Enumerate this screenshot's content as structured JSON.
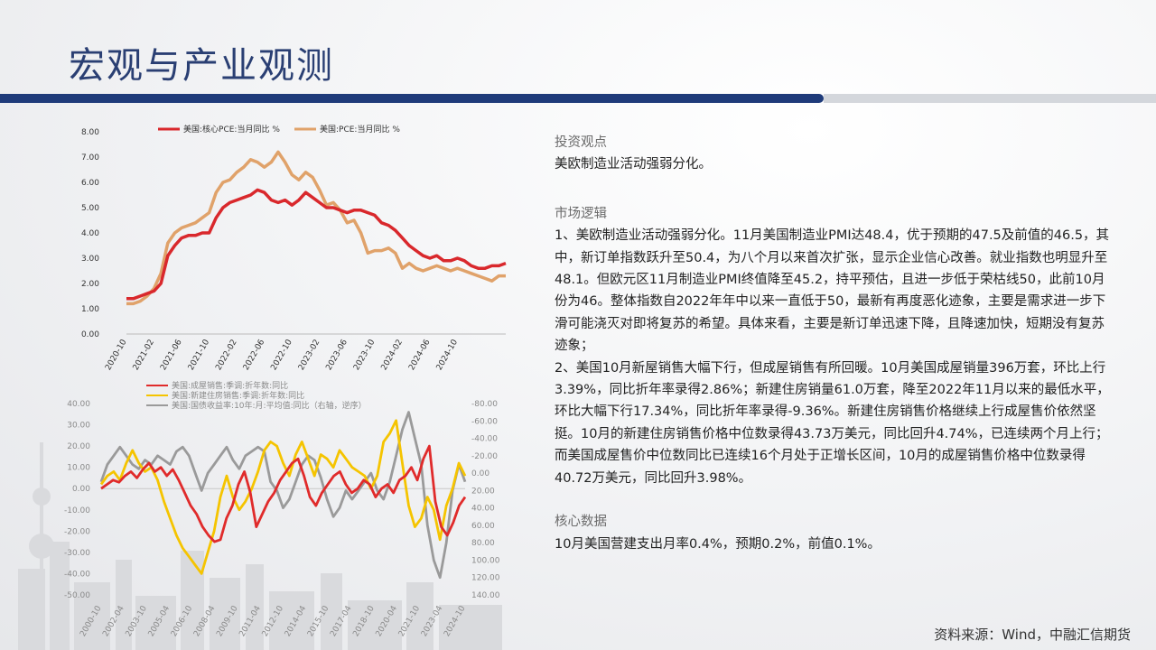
{
  "page": {
    "title": "宏观与产业观测",
    "source": "资料来源：Wind，中融汇信期货"
  },
  "chart_data": [
    {
      "type": "line",
      "title": "",
      "legend": [
        "美国:核心PCE:当月同比 %",
        "美国:PCE:当月同比 %"
      ],
      "ylim": [
        0,
        8
      ],
      "yticks": [
        "0.00",
        "1.00",
        "2.00",
        "3.00",
        "4.00",
        "5.00",
        "6.00",
        "7.00",
        "8.00"
      ],
      "xticks": [
        "2020-10",
        "2021-02",
        "2021-06",
        "2021-10",
        "2022-02",
        "2022-06",
        "2022-10",
        "2023-02",
        "2023-06",
        "2023-10",
        "2024-02",
        "2024-06",
        "2024-10"
      ],
      "x_start": "2020-10",
      "colors": [
        "#d9282c",
        "#e0a26a"
      ],
      "series": [
        {
          "name": "美国:核心PCE:当月同比 %",
          "values": [
            1.4,
            1.4,
            1.5,
            1.6,
            1.7,
            2.0,
            3.1,
            3.5,
            3.8,
            3.9,
            3.9,
            4.0,
            4.0,
            4.6,
            5.0,
            5.2,
            5.3,
            5.4,
            5.5,
            5.7,
            5.6,
            5.3,
            5.2,
            5.3,
            5.1,
            5.3,
            5.6,
            5.4,
            5.2,
            5.0,
            5.0,
            4.9,
            4.8,
            4.9,
            4.9,
            4.8,
            4.7,
            4.4,
            4.3,
            4.1,
            3.8,
            3.5,
            3.3,
            3.1,
            3.0,
            3.1,
            2.9,
            2.9,
            3.0,
            2.9,
            2.7,
            2.6,
            2.6,
            2.7,
            2.7,
            2.8
          ]
        },
        {
          "name": "美国:PCE:当月同比 %",
          "values": [
            1.2,
            1.2,
            1.3,
            1.5,
            1.8,
            2.4,
            3.6,
            4.0,
            4.2,
            4.3,
            4.4,
            4.6,
            4.8,
            5.6,
            6.0,
            6.1,
            6.4,
            6.6,
            6.9,
            6.8,
            6.6,
            6.8,
            7.2,
            6.8,
            6.3,
            6.1,
            6.4,
            6.2,
            5.7,
            5.1,
            5.2,
            4.9,
            4.4,
            4.5,
            4.0,
            3.2,
            3.3,
            3.3,
            3.4,
            3.2,
            2.6,
            2.8,
            2.6,
            2.5,
            2.6,
            2.7,
            2.6,
            2.5,
            2.6,
            2.5,
            2.4,
            2.3,
            2.2,
            2.1,
            2.3,
            2.3
          ]
        }
      ]
    },
    {
      "type": "line",
      "title": "",
      "legend": [
        "美国:成屋销售:季调:折年数:同比",
        "美国:新建住房销售:季调:折年数:同比",
        "美国:国债收益率:10年:月:平均值:同比（右轴，逆序）"
      ],
      "ylim": [
        -50,
        40
      ],
      "yticks": [
        "40.00",
        "30.00",
        "20.00",
        "10.00",
        "0.00",
        "-10.00",
        "-20.00",
        "-30.00",
        "-40.00",
        "-50.00"
      ],
      "y2lim": [
        -80,
        140
      ],
      "y2ticks": [
        "-80.00",
        "-60.00",
        "-40.00",
        "-20.00",
        "0.00",
        "20.00",
        "40.00",
        "60.00",
        "80.00",
        "100.00",
        "120.00",
        "140.00"
      ],
      "xticks": [
        "2000-10",
        "2002-04",
        "2003-10",
        "2005-04",
        "2006-10",
        "2008-04",
        "2009-10",
        "2011-04",
        "2012-10",
        "2014-04",
        "2015-10",
        "2017-04",
        "2018-10",
        "2020-04",
        "2021-10",
        "2023-04",
        "2024-10"
      ],
      "x_start": 2000.75,
      "step": 0.5,
      "colors": [
        "#e02b2b",
        "#f5c400",
        "#9a9a9a"
      ],
      "series": [
        {
          "name": "美国:成屋销售:季调:折年数:同比",
          "axis": "left",
          "values": [
            0,
            2,
            4,
            3,
            6,
            8,
            5,
            9,
            12,
            8,
            10,
            6,
            9,
            4,
            -2,
            -8,
            -12,
            -18,
            -22,
            -25,
            -24,
            -14,
            -8,
            2,
            8,
            -2,
            -18,
            -12,
            -6,
            -2,
            4,
            8,
            12,
            14,
            6,
            -4,
            -8,
            -2,
            2,
            6,
            8,
            2,
            -2,
            0,
            4,
            2,
            -4,
            0,
            2,
            -2,
            4,
            6,
            10,
            4,
            14,
            20,
            -6,
            -18,
            -22,
            -16,
            -8,
            -4
          ]
        },
        {
          "name": "美国:新建住房销售:季调:折年数:同比",
          "axis": "left",
          "values": [
            2,
            6,
            8,
            4,
            12,
            18,
            12,
            8,
            10,
            4,
            -6,
            -14,
            -22,
            -28,
            -32,
            -36,
            -40,
            -30,
            -20,
            -4,
            6,
            -4,
            -10,
            -6,
            0,
            8,
            18,
            22,
            20,
            12,
            6,
            16,
            22,
            14,
            6,
            16,
            14,
            10,
            18,
            14,
            10,
            8,
            6,
            0,
            6,
            22,
            26,
            32,
            12,
            -8,
            -18,
            -14,
            -4,
            -10,
            -24,
            -8,
            0,
            12,
            6
          ]
        },
        {
          "name": "美国:国债收益率:10年:月:平均值:同比（右轴，逆序）",
          "axis": "right",
          "values": [
            10,
            -10,
            -20,
            -30,
            -20,
            -10,
            -5,
            -15,
            -10,
            -20,
            -15,
            -10,
            -25,
            -30,
            -20,
            0,
            20,
            0,
            -10,
            -20,
            -30,
            -15,
            -5,
            -20,
            -25,
            -30,
            -25,
            10,
            20,
            40,
            30,
            10,
            -10,
            -20,
            -15,
            5,
            30,
            50,
            40,
            20,
            30,
            20,
            10,
            0,
            20,
            30,
            10,
            -20,
            -50,
            -70,
            -40,
            -10,
            60,
            100,
            120,
            80,
            20,
            -10,
            10
          ]
        }
      ]
    }
  ],
  "panel": {
    "view_heading": "投资观点",
    "view_text": "美欧制造业活动强弱分化。",
    "logic_heading": "市场逻辑",
    "logic_p1": "1、美欧制造业活动强弱分化。11月美国制造业PMI达48.4，优于预期的47.5及前值的46.5，其中，新订单指数跃升至50.4，为八个月以来首次扩张，显示企业信心改善。就业指数也明显升至48.1。但欧元区11月制造业PMI终值降至45.2，持平预估，且进一步低于荣枯线50，此前10月份为46。整体指数自2022年年中以来一直低于50，最新有再度恶化迹象，主要是需求进一步下滑可能浇灭对即将复苏的希望。具体来看，主要是新订单迅速下降，且降速加快，短期没有复苏迹象；",
    "logic_p2": "2、美国10月新屋销售大幅下行，但成屋销售有所回暖。10月美国成屋销量396万套，环比上行3.39%，同比折年率录得2.86%；新建住房销量61.0万套，降至2022年11月以来的最低水平，环比大幅下行17.34%，同比折年率录得-9.36%。新建住房销售价格继续上行成屋售价依然坚挺。10月的新建住房销售价格中位数录得43.73万美元，同比回升4.74%，已连续两个月上行；而美国成屋售价中位数同比已连续16个月处于正增长区间，10月的成屋销售价格中位数录得40.72万美元，同比回升3.98%。",
    "core_heading": "核心数据",
    "core_text": "10月美国营建支出月率0.4%，预期0.2%，前值0.1%。"
  }
}
